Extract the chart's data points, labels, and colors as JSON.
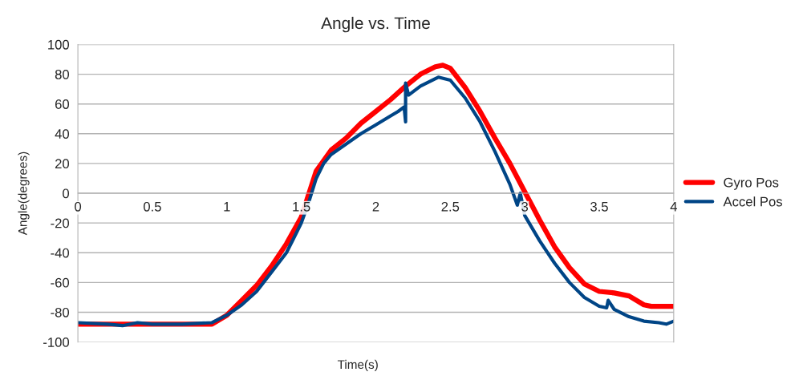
{
  "chart_data": {
    "type": "line",
    "title": "Angle vs. Time",
    "xlabel": "Time(s)",
    "ylabel": "Angle(degrees)",
    "xlim": [
      0,
      4
    ],
    "xticks": [
      0,
      0.5,
      1,
      1.5,
      2,
      2.5,
      3,
      3.5,
      4
    ],
    "ylim": [
      -100,
      100
    ],
    "yticks": [
      -100,
      -80,
      -60,
      -40,
      -20,
      0,
      20,
      40,
      60,
      80,
      100
    ],
    "grid": "y",
    "legend": "right",
    "marker": "none",
    "line_style": "solid",
    "series": [
      {
        "name": "Gyro Pos",
        "color": "#ff0000",
        "x": [
          0,
          0.3,
          0.6,
          0.9,
          1.0,
          1.1,
          1.2,
          1.3,
          1.4,
          1.5,
          1.6,
          1.7,
          1.8,
          1.9,
          2.0,
          2.1,
          2.2,
          2.3,
          2.4,
          2.45,
          2.5,
          2.6,
          2.7,
          2.8,
          2.9,
          3.0,
          3.1,
          3.2,
          3.3,
          3.4,
          3.5,
          3.6,
          3.7,
          3.8,
          3.85,
          3.9,
          4.0
        ],
        "values": [
          -88,
          -88,
          -88,
          -88,
          -82,
          -72,
          -62,
          -49,
          -34,
          -16,
          15,
          29,
          37,
          47,
          55,
          63,
          72,
          80,
          85,
          86,
          84,
          71,
          55,
          37,
          20,
          1,
          -18,
          -36,
          -50,
          -61,
          -66,
          -67,
          -69,
          -75,
          -76,
          -76,
          -76
        ]
      },
      {
        "name": "Accel Pos",
        "color": "#004586",
        "x": [
          0,
          0.2,
          0.3,
          0.4,
          0.5,
          0.7,
          0.9,
          1.0,
          1.1,
          1.2,
          1.3,
          1.4,
          1.45,
          1.5,
          1.55,
          1.6,
          1.65,
          1.7,
          1.8,
          1.9,
          2.0,
          2.1,
          2.15,
          2.19,
          2.2,
          2.2,
          2.22,
          2.3,
          2.4,
          2.42,
          2.5,
          2.6,
          2.7,
          2.8,
          2.9,
          2.95,
          2.97,
          3.0,
          3.1,
          3.2,
          3.3,
          3.4,
          3.5,
          3.55,
          3.56,
          3.6,
          3.7,
          3.8,
          3.9,
          3.95,
          4.0
        ],
        "values": [
          -87,
          -88,
          -89,
          -87,
          -88,
          -88,
          -87,
          -82,
          -75,
          -66,
          -53,
          -40,
          -30,
          -20,
          -6,
          10,
          20,
          26,
          33,
          40,
          46,
          52,
          55,
          58,
          48,
          74,
          66,
          72,
          77,
          78,
          76,
          64,
          48,
          28,
          6,
          -8,
          0,
          -15,
          -32,
          -47,
          -60,
          -70,
          -76,
          -77,
          -72,
          -78,
          -83,
          -86,
          -87,
          -88,
          -86
        ]
      }
    ]
  }
}
